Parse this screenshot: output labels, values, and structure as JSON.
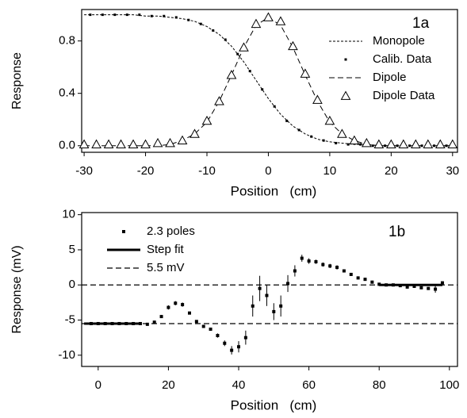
{
  "chart_data": [
    {
      "type": "line",
      "annotation": "1a",
      "x_label": "Position   (cm)",
      "y_label": "Response",
      "xlim": [
        -30.4,
        30.8
      ],
      "ylim": [
        -0.05,
        1.04
      ],
      "xticks": [
        -30,
        -20,
        -10,
        0,
        10,
        20,
        30
      ],
      "yticks": [
        {
          "value": 0,
          "label": "0.0"
        },
        0.4,
        0.8
      ],
      "legend": "center right",
      "series": [
        {
          "name": "Monopole",
          "kind": "line",
          "dash": "dotted",
          "color": "#000000",
          "x": [
            -30,
            -28,
            -26,
            -24,
            -22,
            -20,
            -18,
            -16,
            -14,
            -12,
            -10,
            -8,
            -6,
            -4,
            -2,
            0,
            2,
            4,
            6,
            8,
            10,
            12,
            14,
            16,
            18,
            20,
            22,
            24,
            26,
            28,
            30
          ],
          "values": [
            1,
            1,
            1,
            1,
            1,
            0.99,
            0.99,
            0.98,
            0.97,
            0.95,
            0.91,
            0.85,
            0.76,
            0.64,
            0.5,
            0.36,
            0.24,
            0.15,
            0.09,
            0.05,
            0.03,
            0.02,
            0.01,
            0.01,
            0,
            0,
            0,
            0,
            0,
            0,
            0
          ]
        },
        {
          "name": "Calib. Data",
          "kind": "points",
          "marker": "square",
          "color": "#000000",
          "x": [
            -29,
            -27,
            -25,
            -23,
            -21,
            -19,
            -17,
            -15,
            -13,
            -11,
            -9,
            -7,
            -5,
            -3,
            -1,
            1,
            3,
            5,
            7,
            9,
            11,
            13,
            15,
            17,
            19,
            21,
            23,
            25,
            27,
            29
          ],
          "values": [
            1,
            1,
            1,
            1,
            1,
            0.99,
            0.99,
            0.98,
            0.96,
            0.93,
            0.88,
            0.81,
            0.7,
            0.57,
            0.43,
            0.3,
            0.19,
            0.12,
            0.07,
            0.04,
            0.02,
            0.01,
            0.01,
            0,
            0,
            0,
            0,
            0,
            0,
            0
          ]
        },
        {
          "name": "Dipole",
          "kind": "line",
          "dash": "dashed",
          "color": "#000000",
          "x": [
            -30,
            -28,
            -26,
            -24,
            -22,
            -20,
            -18,
            -16,
            -14,
            -12,
            -10,
            -8,
            -6,
            -4,
            -2,
            0,
            2,
            4,
            6,
            8,
            10,
            12,
            14,
            16,
            18,
            20,
            22,
            24,
            26,
            28,
            30
          ],
          "values": [
            0,
            0,
            0,
            0,
            0,
            0,
            0,
            0.01,
            0.04,
            0.09,
            0.18,
            0.34,
            0.54,
            0.75,
            0.92,
            0.98,
            0.92,
            0.75,
            0.54,
            0.34,
            0.18,
            0.09,
            0.04,
            0.01,
            0,
            0,
            0,
            0,
            0,
            0,
            0
          ]
        },
        {
          "name": "Dipole Data",
          "kind": "points",
          "marker": "triangle",
          "color": "#000000",
          "x": [
            -30,
            -28,
            -26,
            -24,
            -22,
            -20,
            -18,
            -16,
            -14,
            -12,
            -10,
            -8,
            -6,
            -4,
            -2,
            0,
            2,
            4,
            6,
            8,
            10,
            12,
            14,
            16,
            18,
            20,
            22,
            24,
            26,
            28,
            30
          ],
          "values": [
            0.01,
            0.01,
            0.01,
            0.01,
            0.01,
            0.01,
            0.02,
            0.02,
            0.04,
            0.09,
            0.19,
            0.34,
            0.54,
            0.75,
            0.93,
            0.98,
            0.95,
            0.76,
            0.55,
            0.35,
            0.19,
            0.09,
            0.04,
            0.02,
            0.01,
            0.01,
            0.01,
            0.01,
            0.01,
            0.01,
            0.01
          ]
        }
      ]
    },
    {
      "type": "line",
      "annotation": "1b",
      "x_label": "Position   (cm)",
      "y_label": "Response (mV)",
      "xlim": [
        -4.7,
        102.3
      ],
      "ylim": [
        -11.6,
        10.3
      ],
      "xticks": [
        0,
        20,
        40,
        60,
        80,
        100
      ],
      "yticks": [
        -10,
        -5,
        0,
        5,
        10
      ],
      "legend": "upper left",
      "series": [
        {
          "name": "2.3 poles",
          "kind": "errorbar",
          "marker": "square",
          "color": "#000000",
          "x": [
            -2,
            0,
            2,
            4,
            6,
            8,
            10,
            12,
            14,
            16,
            18,
            20,
            22,
            24,
            26,
            28,
            30,
            32,
            34,
            36,
            38,
            40,
            42,
            44,
            46,
            48,
            50,
            52,
            54,
            56,
            58,
            60,
            62,
            64,
            66,
            68,
            70,
            72,
            74,
            76,
            78,
            80,
            82,
            84,
            86,
            88,
            90,
            92,
            94,
            96,
            98
          ],
          "values": [
            -5.5,
            -5.5,
            -5.5,
            -5.5,
            -5.5,
            -5.5,
            -5.5,
            -5.5,
            -5.6,
            -5.3,
            -4.5,
            -3.2,
            -2.6,
            -2.8,
            -4,
            -5.2,
            -5.9,
            -6.3,
            -7.2,
            -8.3,
            -9.3,
            -8.8,
            -7.5,
            -3,
            -0.5,
            -1.5,
            -3.8,
            -3,
            0.2,
            2,
            3.8,
            3.4,
            3.3,
            2.9,
            2.7,
            2.5,
            2,
            1.5,
            1,
            0.8,
            0.4,
            0.1,
            0,
            0,
            -0.1,
            -0.3,
            -0.2,
            -0.4,
            -0.5,
            -0.6,
            0.3
          ],
          "errors": [
            0.2,
            0.2,
            0.2,
            0.2,
            0.2,
            0.2,
            0.2,
            0.2,
            0.2,
            0.2,
            0.2,
            0.3,
            0.3,
            0.3,
            0.2,
            0.2,
            0.2,
            0.2,
            0.3,
            0.4,
            0.6,
            0.8,
            1,
            1.5,
            1.8,
            1.5,
            1.2,
            1.5,
            1.2,
            0.8,
            0.5,
            0.4,
            0.3,
            0.3,
            0.3,
            0.3,
            0.2,
            0.2,
            0.2,
            0.2,
            0.2,
            0.2,
            0.2,
            0.2,
            0.2,
            0.2,
            0.2,
            0.2,
            0.2,
            0.5,
            0.2
          ]
        },
        {
          "name": "Step fit",
          "kind": "line",
          "dash": "solid",
          "width": 3,
          "color": "#000000",
          "x": [
            -4,
            12,
            46,
            80,
            98
          ],
          "values": [
            -5.5,
            -5.5,
            null,
            0,
            0
          ]
        },
        {
          "name": "5.5 mV",
          "kind": "hline",
          "dash": "dashed",
          "color": "#000000",
          "values": [
            0,
            -5.5
          ]
        }
      ]
    }
  ]
}
